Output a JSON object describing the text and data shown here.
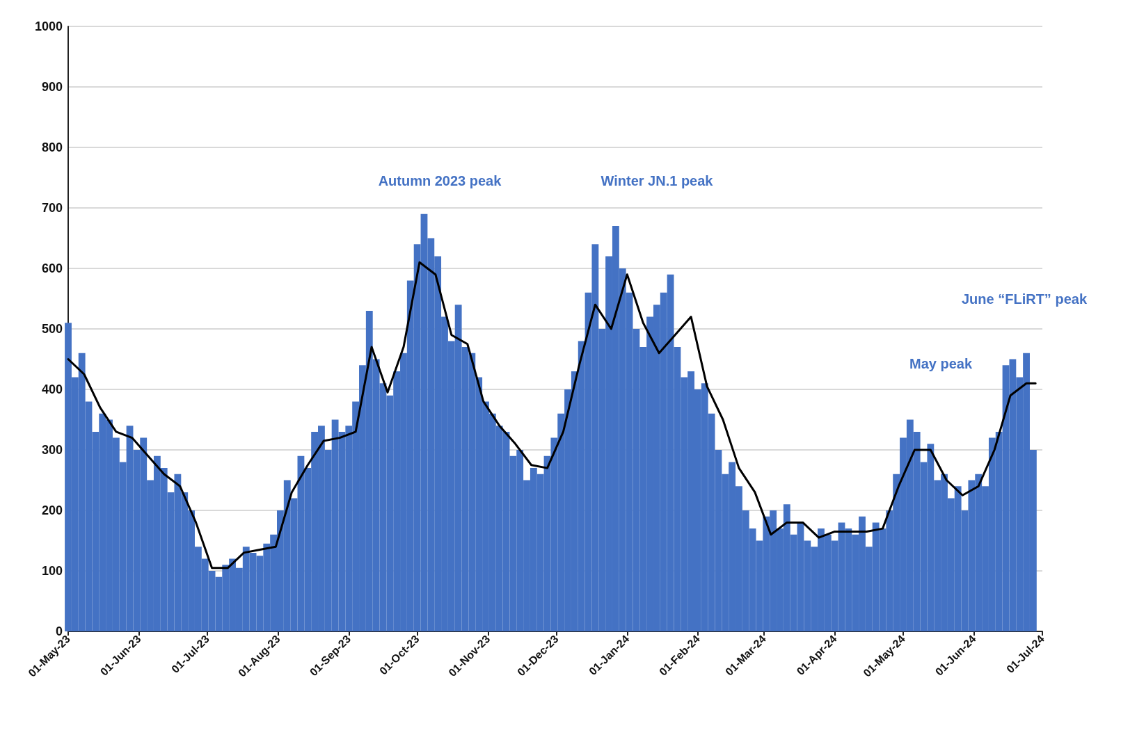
{
  "chart_data": {
    "type": "bar",
    "xlim": [
      "2023-05-01",
      "2024-07-01"
    ],
    "xticks": [
      {
        "value": "2023-05-01",
        "label": "01-May-23"
      },
      {
        "value": "2023-06-01",
        "label": "01-Jun-23"
      },
      {
        "value": "2023-07-01",
        "label": "01-Jul-23"
      },
      {
        "value": "2023-08-01",
        "label": "01-Aug-23"
      },
      {
        "value": "2023-09-01",
        "label": "01-Sep-23"
      },
      {
        "value": "2023-10-01",
        "label": "01-Oct-23"
      },
      {
        "value": "2023-11-01",
        "label": "01-Nov-23"
      },
      {
        "value": "2023-12-01",
        "label": "01-Dec-23"
      },
      {
        "value": "2024-01-01",
        "label": "01-Jan-24"
      },
      {
        "value": "2024-02-01",
        "label": "01-Feb-24"
      },
      {
        "value": "2024-03-01",
        "label": "01-Mar-24"
      },
      {
        "value": "2024-04-01",
        "label": "01-Apr-24"
      },
      {
        "value": "2024-05-01",
        "label": "01-May-24"
      },
      {
        "value": "2024-06-01",
        "label": "01-Jun-24"
      },
      {
        "value": "2024-07-01",
        "label": "01-Jul-24"
      }
    ],
    "ylim": [
      0,
      1000
    ],
    "yticks": [
      0,
      100,
      200,
      300,
      400,
      500,
      600,
      700,
      800,
      900,
      1000
    ],
    "grid": "y",
    "annotations": [
      "Autumn 2023 peak",
      "Winter JN.1 peak",
      "June “FLiRT” peak",
      "May peak"
    ],
    "series": [
      {
        "color": "#4472c4",
        "x": [
          "2023-05-01",
          "2023-05-04",
          "2023-05-07",
          "2023-05-10",
          "2023-05-13",
          "2023-05-16",
          "2023-05-19",
          "2023-05-22",
          "2023-05-25",
          "2023-05-28",
          "2023-05-31",
          "2023-06-03",
          "2023-06-06",
          "2023-06-09",
          "2023-06-12",
          "2023-06-15",
          "2023-06-18",
          "2023-06-21",
          "2023-06-24",
          "2023-06-27",
          "2023-06-30",
          "2023-07-03",
          "2023-07-06",
          "2023-07-09",
          "2023-07-12",
          "2023-07-15",
          "2023-07-18",
          "2023-07-21",
          "2023-07-24",
          "2023-07-27",
          "2023-07-30",
          "2023-08-02",
          "2023-08-05",
          "2023-08-08",
          "2023-08-11",
          "2023-08-14",
          "2023-08-17",
          "2023-08-20",
          "2023-08-23",
          "2023-08-26",
          "2023-08-29",
          "2023-09-01",
          "2023-09-04",
          "2023-09-07",
          "2023-09-10",
          "2023-09-13",
          "2023-09-16",
          "2023-09-19",
          "2023-09-22",
          "2023-09-25",
          "2023-09-28",
          "2023-10-01",
          "2023-10-04",
          "2023-10-07",
          "2023-10-10",
          "2023-10-13",
          "2023-10-16",
          "2023-10-19",
          "2023-10-22",
          "2023-10-25",
          "2023-10-28",
          "2023-10-31",
          "2023-11-03",
          "2023-11-06",
          "2023-11-09",
          "2023-11-12",
          "2023-11-15",
          "2023-11-18",
          "2023-11-21",
          "2023-11-24",
          "2023-11-27",
          "2023-11-30",
          "2023-12-03",
          "2023-12-06",
          "2023-12-09",
          "2023-12-12",
          "2023-12-15",
          "2023-12-18",
          "2023-12-21",
          "2023-12-24",
          "2023-12-27",
          "2023-12-30",
          "2024-01-02",
          "2024-01-05",
          "2024-01-08",
          "2024-01-11",
          "2024-01-14",
          "2024-01-17",
          "2024-01-20",
          "2024-01-23",
          "2024-01-26",
          "2024-01-29",
          "2024-02-01",
          "2024-02-04",
          "2024-02-07",
          "2024-02-10",
          "2024-02-13",
          "2024-02-16",
          "2024-02-19",
          "2024-02-22",
          "2024-02-25",
          "2024-02-28",
          "2024-03-02",
          "2024-03-05",
          "2024-03-08",
          "2024-03-11",
          "2024-03-14",
          "2024-03-17",
          "2024-03-20",
          "2024-03-23",
          "2024-03-26",
          "2024-03-29",
          "2024-04-01",
          "2024-04-04",
          "2024-04-07",
          "2024-04-10",
          "2024-04-13",
          "2024-04-16",
          "2024-04-19",
          "2024-04-22",
          "2024-04-25",
          "2024-04-28",
          "2024-05-01",
          "2024-05-04",
          "2024-05-07",
          "2024-05-10",
          "2024-05-13",
          "2024-05-16",
          "2024-05-19",
          "2024-05-22",
          "2024-05-25",
          "2024-05-28",
          "2024-05-31",
          "2024-06-03",
          "2024-06-06",
          "2024-06-09",
          "2024-06-12",
          "2024-06-15",
          "2024-06-18",
          "2024-06-21",
          "2024-06-24",
          "2024-06-27"
        ],
        "values": [
          510,
          420,
          460,
          380,
          330,
          360,
          350,
          320,
          280,
          340,
          300,
          320,
          250,
          290,
          270,
          230,
          260,
          230,
          200,
          140,
          120,
          100,
          90,
          110,
          120,
          105,
          140,
          130,
          125,
          145,
          160,
          200,
          250,
          220,
          290,
          270,
          330,
          340,
          300,
          350,
          330,
          340,
          380,
          440,
          530,
          450,
          410,
          390,
          430,
          460,
          580,
          640,
          690,
          650,
          620,
          520,
          480,
          540,
          470,
          460,
          420,
          380,
          360,
          340,
          330,
          290,
          300,
          250,
          270,
          260,
          290,
          320,
          360,
          400,
          430,
          480,
          560,
          640,
          500,
          620,
          670,
          600,
          560,
          500,
          470,
          520,
          540,
          560,
          590,
          470,
          420,
          430,
          400,
          410,
          360,
          300,
          260,
          280,
          240,
          200,
          170,
          150,
          190,
          200,
          170,
          210,
          160,
          180,
          150,
          140,
          170,
          160,
          150,
          180,
          170,
          160,
          190,
          140,
          180,
          170,
          200,
          260,
          320,
          350,
          330,
          280,
          310,
          250,
          260,
          220,
          240,
          200,
          250,
          260,
          240,
          320,
          330,
          440,
          450,
          420,
          460,
          300
        ]
      },
      {
        "type": "line",
        "color": "#000000",
        "line_style": "solid",
        "x": [
          "2023-05-01",
          "2023-05-08",
          "2023-05-15",
          "2023-05-22",
          "2023-05-29",
          "2023-06-05",
          "2023-06-12",
          "2023-06-19",
          "2023-06-26",
          "2023-07-03",
          "2023-07-10",
          "2023-07-17",
          "2023-07-24",
          "2023-07-31",
          "2023-08-07",
          "2023-08-14",
          "2023-08-21",
          "2023-08-28",
          "2023-09-04",
          "2023-09-11",
          "2023-09-18",
          "2023-09-25",
          "2023-10-02",
          "2023-10-09",
          "2023-10-16",
          "2023-10-23",
          "2023-10-30",
          "2023-11-06",
          "2023-11-13",
          "2023-11-20",
          "2023-11-27",
          "2023-12-04",
          "2023-12-11",
          "2023-12-18",
          "2023-12-25",
          "2024-01-01",
          "2024-01-08",
          "2024-01-15",
          "2024-01-22",
          "2024-01-29",
          "2024-02-05",
          "2024-02-12",
          "2024-02-19",
          "2024-02-26",
          "2024-03-04",
          "2024-03-11",
          "2024-03-18",
          "2024-03-25",
          "2024-04-01",
          "2024-04-08",
          "2024-04-15",
          "2024-04-22",
          "2024-04-29",
          "2024-05-06",
          "2024-05-13",
          "2024-05-20",
          "2024-05-27",
          "2024-06-03",
          "2024-06-10",
          "2024-06-17",
          "2024-06-24",
          "2024-06-28"
        ],
        "values": [
          450,
          425,
          370,
          330,
          320,
          290,
          260,
          240,
          180,
          105,
          105,
          130,
          135,
          140,
          230,
          275,
          315,
          320,
          330,
          470,
          395,
          470,
          610,
          590,
          490,
          475,
          380,
          340,
          310,
          275,
          270,
          330,
          440,
          540,
          500,
          590,
          510,
          460,
          490,
          520,
          405,
          350,
          270,
          230,
          160,
          180,
          180,
          155,
          165,
          165,
          165,
          170,
          240,
          300,
          300,
          250,
          225,
          240,
          300,
          390,
          410,
          410
        ]
      }
    ]
  }
}
